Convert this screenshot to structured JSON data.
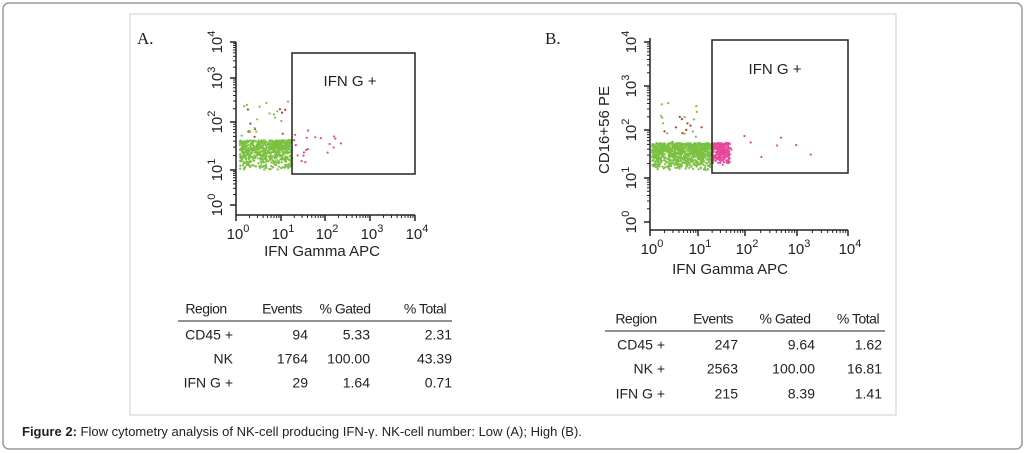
{
  "figure": {
    "ticks": [
      {
        "base": "10",
        "exponent": "0"
      },
      {
        "base": "10",
        "exponent": "1"
      },
      {
        "base": "10",
        "exponent": "2"
      },
      {
        "base": "10",
        "exponent": "3"
      },
      {
        "base": "10",
        "exponent": "4"
      }
    ],
    "panels": [
      {
        "label": "A.",
        "gate_label": "IFN G +",
        "x_axis_label": "IFN Gamma APC",
        "table": {
          "header": [
            "Region",
            "Events",
            "% Gated",
            "% Total"
          ],
          "rows": [
            [
              "CD45 +",
              "94",
              "5.33",
              "2.31"
            ],
            [
              "NK",
              "1764",
              "100.00",
              "43.39"
            ],
            [
              "IFN G +",
              "29",
              "1.64",
              "0.71"
            ]
          ]
        }
      },
      {
        "label": "B.",
        "gate_label": "IFN G +",
        "x_axis_label": "IFN Gamma APC",
        "y_axis_label": "CD16+56 PE",
        "table": {
          "header": [
            "Region",
            "Events",
            "% Gated",
            "% Total"
          ],
          "rows": [
            [
              "CD45 +",
              "247",
              "9.64",
              "1.62"
            ],
            [
              "NK +",
              "2563",
              "100.00",
              "16.81"
            ],
            [
              "IFN G +",
              "215",
              "8.39",
              "1.41"
            ]
          ]
        }
      }
    ],
    "caption": {
      "label": "Figure 2:",
      "text": " Flow cytometry analysis of NK-cell producing IFN-γ. NK-cell number: Low (A); High (B)."
    }
  }
}
